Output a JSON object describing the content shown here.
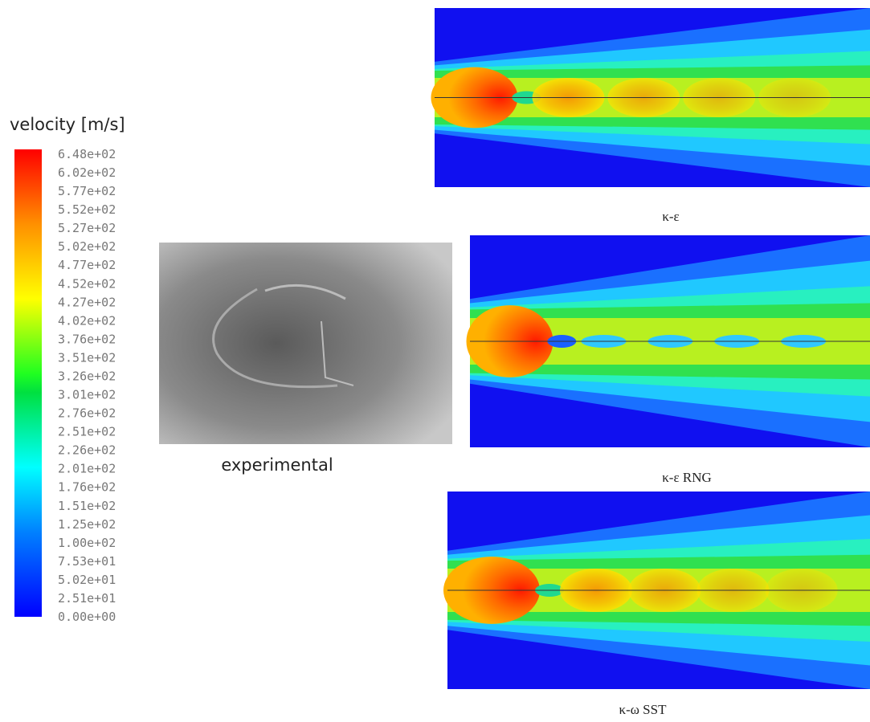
{
  "colorbar": {
    "title": "velocity [m/s]",
    "labels": [
      "6.48e+02",
      "6.02e+02",
      "5.77e+02",
      "5.52e+02",
      "5.27e+02",
      "5.02e+02",
      "4.77e+02",
      "4.52e+02",
      "4.27e+02",
      "4.02e+02",
      "3.76e+02",
      "3.51e+02",
      "3.26e+02",
      "3.01e+02",
      "2.76e+02",
      "2.51e+02",
      "2.26e+02",
      "2.01e+02",
      "1.76e+02",
      "1.51e+02",
      "1.25e+02",
      "1.00e+02",
      "7.53e+01",
      "5.02e+01",
      "2.51e+01",
      "0.00e+00"
    ]
  },
  "experimental": {
    "caption": "experimental"
  },
  "panels": [
    {
      "caption": "κ-ε"
    },
    {
      "caption": "κ-ε RNG"
    },
    {
      "caption": "κ-ω SST"
    }
  ]
}
